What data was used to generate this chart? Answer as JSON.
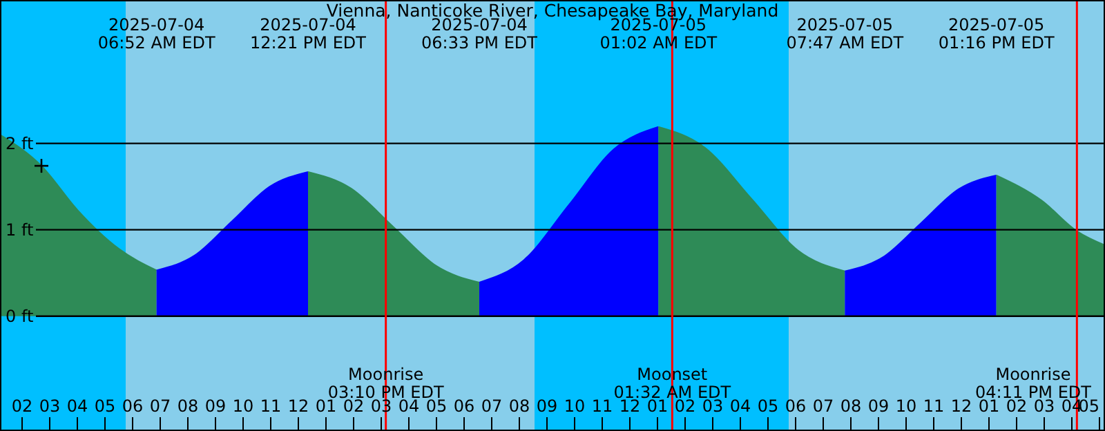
{
  "chart_data": {
    "type": "area",
    "title": "Vienna, Nanticoke River, Chesapeake Bay, Maryland",
    "xlim": [
      "2025-07-04T01:12",
      "2025-07-05T17:12"
    ],
    "xticks": [
      {
        "value": "2025-07-04T02:00",
        "label": "02"
      },
      {
        "value": "2025-07-04T03:00",
        "label": "03"
      },
      {
        "value": "2025-07-04T04:00",
        "label": "04"
      },
      {
        "value": "2025-07-04T05:00",
        "label": "05"
      },
      {
        "value": "2025-07-04T06:00",
        "label": "06"
      },
      {
        "value": "2025-07-04T07:00",
        "label": "07"
      },
      {
        "value": "2025-07-04T08:00",
        "label": "08"
      },
      {
        "value": "2025-07-04T09:00",
        "label": "09"
      },
      {
        "value": "2025-07-04T10:00",
        "label": "10"
      },
      {
        "value": "2025-07-04T11:00",
        "label": "11"
      },
      {
        "value": "2025-07-04T12:00",
        "label": "12"
      },
      {
        "value": "2025-07-04T13:00",
        "label": "01"
      },
      {
        "value": "2025-07-04T14:00",
        "label": "02"
      },
      {
        "value": "2025-07-04T15:00",
        "label": "03"
      },
      {
        "value": "2025-07-04T16:00",
        "label": "04"
      },
      {
        "value": "2025-07-04T17:00",
        "label": "05"
      },
      {
        "value": "2025-07-04T18:00",
        "label": "06"
      },
      {
        "value": "2025-07-04T19:00",
        "label": "07"
      },
      {
        "value": "2025-07-04T20:00",
        "label": "08"
      },
      {
        "value": "2025-07-04T21:00",
        "label": "09"
      },
      {
        "value": "2025-07-04T22:00",
        "label": "10"
      },
      {
        "value": "2025-07-04T23:00",
        "label": "11"
      },
      {
        "value": "2025-07-05T00:00",
        "label": "12"
      },
      {
        "value": "2025-07-05T01:00",
        "label": "01"
      },
      {
        "value": "2025-07-05T02:00",
        "label": "02"
      },
      {
        "value": "2025-07-05T03:00",
        "label": "03"
      },
      {
        "value": "2025-07-05T04:00",
        "label": "04"
      },
      {
        "value": "2025-07-05T05:00",
        "label": "05"
      },
      {
        "value": "2025-07-05T06:00",
        "label": "06"
      },
      {
        "value": "2025-07-05T07:00",
        "label": "07"
      },
      {
        "value": "2025-07-05T08:00",
        "label": "08"
      },
      {
        "value": "2025-07-05T09:00",
        "label": "09"
      },
      {
        "value": "2025-07-05T10:00",
        "label": "10"
      },
      {
        "value": "2025-07-05T11:00",
        "label": "11"
      },
      {
        "value": "2025-07-05T12:00",
        "label": "12"
      },
      {
        "value": "2025-07-05T13:00",
        "label": "01"
      },
      {
        "value": "2025-07-05T14:00",
        "label": "02"
      },
      {
        "value": "2025-07-05T15:00",
        "label": "03"
      },
      {
        "value": "2025-07-05T16:00",
        "label": "04"
      },
      {
        "value": "2025-07-05T17:00",
        "label": "05"
      }
    ],
    "ylim": [
      -1.33,
      3.66
    ],
    "yticks": [
      {
        "value": 0,
        "label": "0 ft"
      },
      {
        "value": 1,
        "label": "1 ft"
      },
      {
        "value": 2,
        "label": "2 ft"
      }
    ],
    "grid": "y",
    "series": [
      {
        "type": "area",
        "color": "#2e8b57",
        "x": [
          "2025-07-04T01:12",
          "2025-07-04T02:42",
          "2025-07-04T04:00",
          "2025-07-04T05:30",
          "2025-07-04T06:52"
        ],
        "values": [
          2.1,
          1.74,
          1.23,
          0.78,
          0.53
        ]
      },
      {
        "type": "area",
        "color": "#0000ff",
        "x": [
          "2025-07-04T06:52",
          "2025-07-04T08:14",
          "2025-07-04T09:36",
          "2025-07-04T10:58",
          "2025-07-04T12:21"
        ],
        "values": [
          0.53,
          0.7,
          1.1,
          1.5,
          1.67
        ]
      },
      {
        "type": "area",
        "color": "#2e8b57",
        "x": [
          "2025-07-04T12:21",
          "2025-07-04T13:54",
          "2025-07-04T15:27",
          "2025-07-04T17:00",
          "2025-07-04T18:33"
        ],
        "values": [
          1.67,
          1.48,
          1.03,
          0.58,
          0.39
        ]
      },
      {
        "type": "area",
        "color": "#0000ff",
        "x": [
          "2025-07-04T18:33",
          "2025-07-04T20:10",
          "2025-07-04T21:48",
          "2025-07-04T23:25",
          "2025-07-05T01:02"
        ],
        "values": [
          0.39,
          0.65,
          1.29,
          1.93,
          2.19
        ]
      },
      {
        "type": "area",
        "color": "#2e8b57",
        "x": [
          "2025-07-05T01:02",
          "2025-07-05T02:43",
          "2025-07-05T04:24",
          "2025-07-05T06:05",
          "2025-07-05T07:47"
        ],
        "values": [
          2.19,
          1.95,
          1.36,
          0.76,
          0.52
        ]
      },
      {
        "type": "area",
        "color": "#0000ff",
        "x": [
          "2025-07-05T07:47",
          "2025-07-05T09:09",
          "2025-07-05T10:31",
          "2025-07-05T11:54",
          "2025-07-05T13:16"
        ],
        "values": [
          0.52,
          0.68,
          1.07,
          1.47,
          1.63
        ]
      },
      {
        "type": "area",
        "color": "#2e8b57",
        "x": [
          "2025-07-05T13:16",
          "2025-07-05T14:54",
          "2025-07-05T16:12",
          "2025-07-05T17:12"
        ],
        "values": [
          1.63,
          1.34,
          0.98,
          0.82
        ]
      },
      {
        "type": "scatter",
        "color": "#000000",
        "marker": "cross",
        "x": [
          "2025-07-04T02:42"
        ],
        "values": [
          1.74
        ]
      }
    ],
    "bands": [
      {
        "axis": "x",
        "from": "2025-07-04T01:12",
        "to": "2025-07-04T05:45",
        "color": "#00bfff"
      },
      {
        "axis": "x",
        "from": "2025-07-04T05:45",
        "to": "2025-07-04T20:33",
        "color": "#87ceeb"
      },
      {
        "axis": "x",
        "from": "2025-07-04T20:33",
        "to": "2025-07-05T05:45",
        "color": "#00bfff"
      },
      {
        "axis": "x",
        "from": "2025-07-05T05:45",
        "to": "2025-07-05T17:12",
        "color": "#87ceeb"
      }
    ],
    "ref_lines": [
      {
        "axis": "x",
        "value": "2025-07-04T15:10",
        "label": "Moonrise\n03:10 PM EDT",
        "color": "#ff0000"
      },
      {
        "axis": "x",
        "value": "2025-07-05T01:32",
        "label": "Moonset\n01:32 AM EDT",
        "color": "#ff0000"
      },
      {
        "axis": "x",
        "value": "2025-07-05T16:11",
        "label": "Moonrise\n04:11 PM EDT",
        "color": "#ff0000"
      }
    ],
    "annotations": [
      "2025-07-04\n06:52 AM EDT",
      "2025-07-04\n12:21 PM EDT",
      "2025-07-04\n06:33 PM EDT",
      "2025-07-05\n01:02 AM EDT",
      "2025-07-05\n07:47 AM EDT",
      "2025-07-05\n01:16 PM EDT"
    ]
  }
}
